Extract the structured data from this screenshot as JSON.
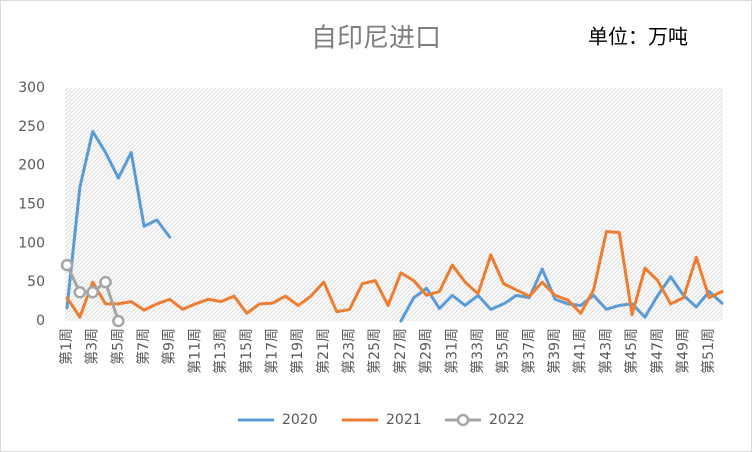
{
  "chart_data": {
    "type": "line",
    "title": "自印尼进口",
    "subtitle": "单位：万吨",
    "categories": [
      "第1周",
      null,
      "第3周",
      null,
      "第5周",
      null,
      "第7周",
      null,
      "第9周",
      null,
      "第11周",
      null,
      "第13周",
      null,
      "第15周",
      null,
      "第17周",
      null,
      "第19周",
      null,
      "第21周",
      null,
      "第23周",
      null,
      "第25周",
      null,
      "第27周",
      null,
      "第29周",
      null,
      "第31周",
      null,
      "第33周",
      null,
      "第35周",
      null,
      "第37周",
      null,
      "第39周",
      null,
      "第41周",
      null,
      "第43周",
      null,
      "第45周",
      null,
      "第47周",
      null,
      "第49周",
      null,
      "第51周",
      null
    ],
    "series": [
      {
        "name": "2020",
        "color": "#5b9bd5",
        "values": [
          17,
          172,
          244,
          217,
          184,
          217,
          122,
          130,
          108,
          null,
          null,
          null,
          null,
          null,
          null,
          null,
          null,
          null,
          null,
          null,
          null,
          null,
          null,
          null,
          null,
          null,
          0,
          30,
          42,
          16,
          33,
          20,
          33,
          15,
          22,
          33,
          30,
          67,
          28,
          22,
          20,
          33,
          15,
          20,
          22,
          5,
          33,
          57,
          33,
          18,
          38,
          23
        ]
      },
      {
        "name": "2021",
        "color": "#ed7d31",
        "values": [
          30,
          5,
          50,
          22,
          22,
          25,
          14,
          22,
          28,
          15,
          22,
          28,
          25,
          32,
          10,
          22,
          23,
          32,
          20,
          32,
          50,
          12,
          15,
          48,
          52,
          20,
          62,
          52,
          33,
          38,
          72,
          50,
          35,
          85,
          48,
          40,
          32,
          50,
          33,
          27,
          10,
          40,
          115,
          114,
          8,
          68,
          52,
          22,
          30,
          82,
          30,
          38
        ]
      },
      {
        "name": "2022",
        "color": "#a5a5a5",
        "marker": "circle",
        "values": [
          72,
          37,
          37,
          50,
          0,
          null,
          null,
          null,
          null,
          null,
          null,
          null,
          null,
          null,
          null,
          null,
          null,
          null,
          null,
          null,
          null,
          null,
          null,
          null,
          null,
          null,
          null,
          null,
          null,
          null,
          null,
          null,
          null,
          null,
          null,
          null,
          null,
          null,
          null,
          null,
          null,
          null,
          null,
          null,
          null,
          null,
          null,
          null,
          null,
          null,
          null,
          null
        ]
      }
    ],
    "ylim": [
      0,
      300
    ],
    "yticks": [
      0,
      50,
      100,
      150,
      200,
      250,
      300
    ],
    "legend": "bottom"
  }
}
